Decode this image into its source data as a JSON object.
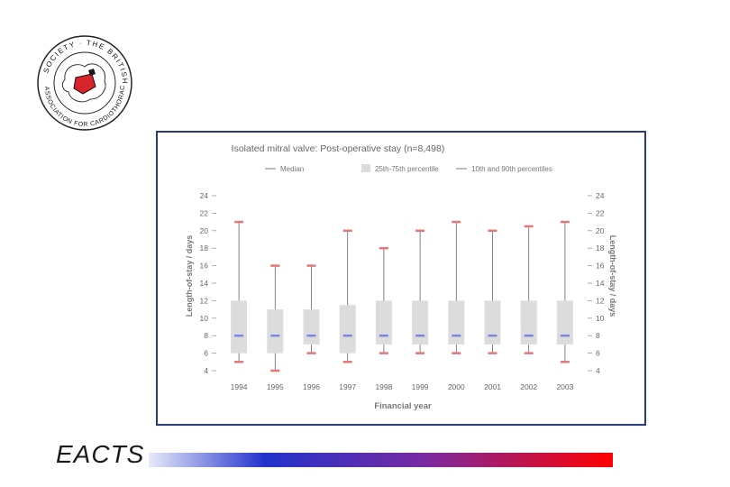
{
  "logo": {
    "icon": "bacts-seal-icon",
    "text_top": "SOCIETY · THE BRITISH",
    "text_bottom": "ASSOCIATION FOR CARDIOTHORACIC SURGERY"
  },
  "footer": {
    "brand": "EACTS",
    "gradient_colors": [
      "#e8eaf8",
      "#2233cc",
      "#7a2aa0",
      "#ff0000"
    ]
  },
  "chart_data": {
    "type": "boxplot",
    "title": "Isolated mitral valve: Post-operative stay (n=8,498)",
    "legend": {
      "median": "Median",
      "iqr": "25th-75th percentile",
      "whiskers": "10th and 90th percentiles",
      "placement": "top"
    },
    "xlabel": "Financial year",
    "ylabel_left": "Length-of-stay / days",
    "ylabel_right": "Length-of-stay / days",
    "ylim": [
      4,
      24
    ],
    "yticks": [
      4,
      6,
      8,
      10,
      12,
      14,
      16,
      18,
      20,
      22,
      24
    ],
    "categories": [
      "1994",
      "1995",
      "1996",
      "1997",
      "1998",
      "1999",
      "2000",
      "2001",
      "2002",
      "2003"
    ],
    "series": [
      {
        "name": "10th percentile",
        "values": [
          5,
          4,
          6,
          5,
          6,
          6,
          6,
          6,
          6,
          5
        ]
      },
      {
        "name": "25th percentile",
        "values": [
          6,
          6,
          7,
          6,
          7,
          7,
          7,
          7,
          7,
          7
        ]
      },
      {
        "name": "Median",
        "values": [
          8,
          8,
          8,
          8,
          8,
          8,
          8,
          8,
          8,
          8
        ]
      },
      {
        "name": "75th percentile",
        "values": [
          12,
          11,
          11,
          11.5,
          12,
          12,
          12,
          12,
          12,
          12
        ]
      },
      {
        "name": "90th percentile",
        "values": [
          21,
          16,
          16,
          20,
          18,
          20,
          21,
          20,
          20.5,
          21
        ]
      }
    ],
    "colors": {
      "box": "#dcdcdc",
      "median": "#7b86e0",
      "whisker_cap": "#e07878",
      "whisker_line": "#666666",
      "axis_text": "#666666"
    },
    "grid": false
  }
}
